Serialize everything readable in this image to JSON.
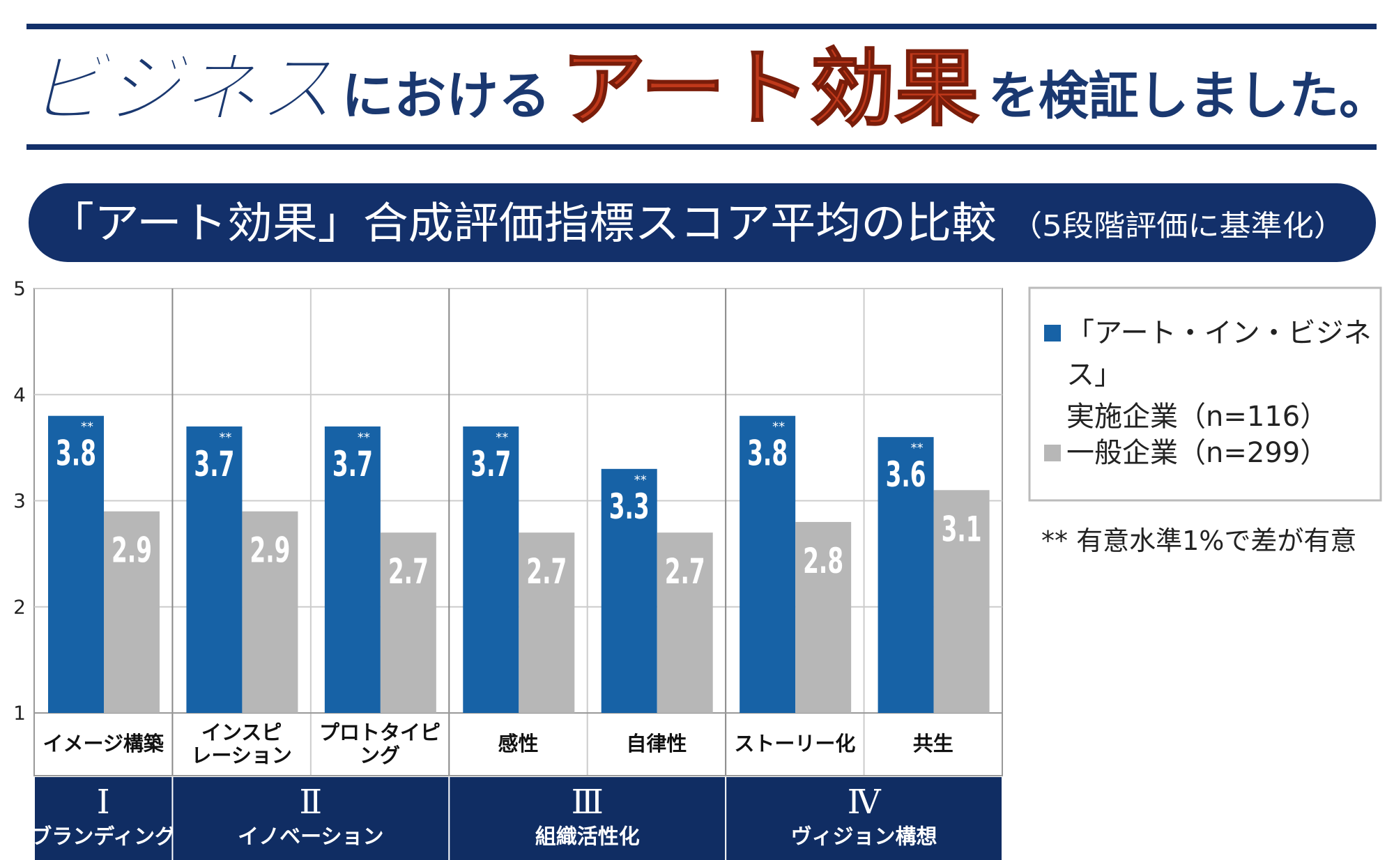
{
  "header": {
    "title_parts": [
      "ビジネス",
      "における",
      "アート効果",
      "を検証しました。"
    ]
  },
  "chart_data": {
    "type": "bar",
    "title": "「アート効果」合成評価指標スコア平均の比較",
    "subtitle": "（5段階評価に基準化）",
    "categories": [
      "イメージ構築",
      "インスピ\nレーション",
      "プロトタイピング",
      "感性",
      "自律性",
      "ストーリー化",
      "共生"
    ],
    "groups": [
      {
        "numeral": "Ⅰ",
        "name": "ブランディング"
      },
      {
        "numeral": "Ⅱ",
        "name": "イノベーション"
      },
      {
        "numeral": "Ⅲ",
        "name": "組織活性化"
      },
      {
        "numeral": "Ⅳ",
        "name": "ヴィジョン構想"
      }
    ],
    "series": [
      {
        "name": "「アート・イン・ビジネス」\n実施企業（n=116）",
        "color": "#1762a6",
        "values": [
          3.8,
          3.7,
          3.7,
          3.7,
          3.3,
          3.8,
          3.6
        ],
        "markers": [
          "**",
          "**",
          "**",
          "**",
          "**",
          "**",
          "**"
        ]
      },
      {
        "name": "一般企業（n=299）",
        "color": "#b7b7b7",
        "values": [
          2.9,
          2.9,
          2.7,
          2.7,
          2.7,
          2.8,
          3.1
        ]
      }
    ],
    "ylim": [
      1,
      5
    ],
    "yticks": [
      1,
      2,
      3,
      4,
      5
    ],
    "grid": true,
    "footnote": "** 有意水準1%で差が有意"
  }
}
